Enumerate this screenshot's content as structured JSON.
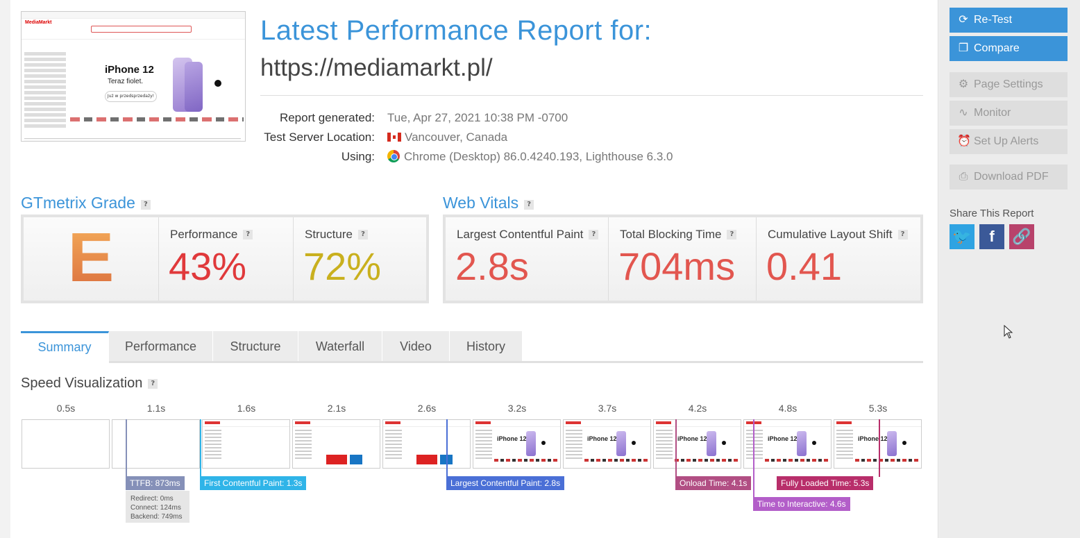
{
  "report": {
    "title": "Latest Performance Report for:",
    "url": "https://mediamarkt.pl/",
    "generated_label": "Report generated:",
    "generated_value": "Tue, Apr 27, 2021 10:38 PM -0700",
    "location_label": "Test Server Location:",
    "location_value": "Vancouver, Canada",
    "using_label": "Using:",
    "using_value": "Chrome (Desktop) 86.0.4240.193, Lighthouse 6.3.0"
  },
  "thumbnail": {
    "logo": "MediaMarkt",
    "banner_title": "iPhone 12",
    "banner_sub": "Teraz fiolet.",
    "banner_button": "Już w przedsprzedaży!"
  },
  "grade": {
    "section_title": "GTmetrix Grade",
    "letter": "E",
    "performance_label": "Performance",
    "performance_value": "43%",
    "structure_label": "Structure",
    "structure_value": "72%"
  },
  "vitals": {
    "section_title": "Web Vitals",
    "lcp_label": "Largest Contentful Paint",
    "lcp_value": "2.8s",
    "tbt_label": "Total Blocking Time",
    "tbt_value": "704ms",
    "cls_label": "Cumulative Layout Shift",
    "cls_value": "0.41"
  },
  "colors": {
    "accent": "#3b94d9",
    "performance": "#e0393b",
    "structure": "#c9b01e",
    "vitals": "#e2564f"
  },
  "tabs": [
    "Summary",
    "Performance",
    "Structure",
    "Waterfall",
    "Video",
    "History"
  ],
  "speed": {
    "title": "Speed Visualization",
    "frame_times": [
      "0.5s",
      "1.1s",
      "1.6s",
      "2.1s",
      "2.6s",
      "3.2s",
      "3.7s",
      "4.2s",
      "4.8s",
      "5.3s"
    ],
    "frame_title": "iPhone 12",
    "ttfb_label": "TTFB: 873ms",
    "ttfb_redirect": "Redirect: 0ms",
    "ttfb_connect": "Connect: 124ms",
    "ttfb_backend": "Backend: 749ms",
    "fcp_label": "First Contentful Paint: 1.3s",
    "lcp_label": "Largest Contentful Paint: 2.8s",
    "onload_label": "Onload Time: 4.1s",
    "tti_label": "Time to Interactive: 4.6s",
    "fully_loaded_label": "Fully Loaded Time: 5.3s",
    "marker_colors": {
      "ttfb": "#8590b8",
      "fcp": "#2fb4e8",
      "lcp": "#4a6fd6",
      "onload": "#b14e83",
      "tti": "#b35ec9",
      "fully_loaded": "#b82e6a"
    }
  },
  "sidebar": {
    "retest": "Re-Test",
    "compare": "Compare",
    "page_settings": "Page Settings",
    "monitor": "Monitor",
    "alerts": "Set Up Alerts",
    "download_pdf": "Download PDF",
    "share_title": "Share This Report",
    "share_icons": [
      "twitter-icon",
      "facebook-icon",
      "link-icon"
    ]
  }
}
